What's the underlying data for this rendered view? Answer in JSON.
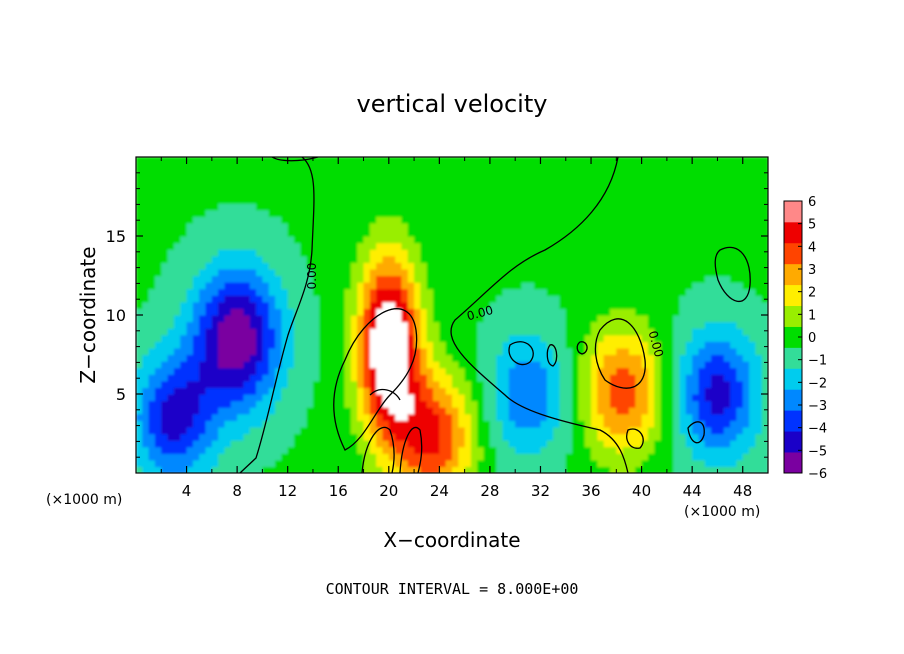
{
  "chart_data": {
    "type": "heatmap",
    "title": "vertical velocity",
    "xlabel": "X−coordinate",
    "ylabel": "Z−coordinate",
    "x_units_left": "(×1000 m)",
    "x_units_right": "(×1000 m)",
    "footer": "CONTOUR INTERVAL = 8.000E+00",
    "xlim": [
      0,
      50
    ],
    "ylim": [
      0,
      20
    ],
    "x_ticks": [
      4,
      8,
      12,
      16,
      20,
      24,
      28,
      32,
      36,
      40,
      44,
      48
    ],
    "x_tick_labels": [
      "4",
      "8",
      "12",
      "16",
      "20",
      "24",
      "28",
      "32",
      "36",
      "40",
      "44",
      "48"
    ],
    "y_ticks": [
      5,
      10,
      15
    ],
    "y_tick_labels": [
      "5",
      "10",
      "15"
    ],
    "colorbar": {
      "min": -6,
      "max": 6,
      "levels": [
        -6,
        -5,
        -4,
        -3,
        -2,
        -1,
        0,
        1,
        2,
        3,
        4,
        5,
        6
      ],
      "labels": [
        "−6",
        "−5",
        "−4",
        "−3",
        "−2",
        "−1",
        "0",
        "1",
        "2",
        "3",
        "4",
        "5",
        "6"
      ],
      "colors": [
        "#7a00a0",
        "#1a00c8",
        "#0033ff",
        "#0088ff",
        "#00ccee",
        "#33dd99",
        "#00dd00",
        "#99ee00",
        "#ffee00",
        "#ffaa00",
        "#ff4400",
        "#ee0000",
        "#ff8888"
      ]
    },
    "contour_labels": [
      "0.00",
      "0.00",
      "0.00"
    ],
    "features": [
      {
        "kind": "updraft",
        "x": 20,
        "z": 8,
        "amp": 8
      },
      {
        "kind": "updraft",
        "x": 23.5,
        "z": 2.3,
        "amp": 5
      },
      {
        "kind": "updraft",
        "x": 38.5,
        "z": 5.2,
        "amp": 4.5
      },
      {
        "kind": "downdraft",
        "x": 8,
        "z": 8.5,
        "amp": -6
      },
      {
        "kind": "downdraft",
        "x": 3,
        "z": 3.5,
        "amp": -4.5
      },
      {
        "kind": "downdraft",
        "x": 46,
        "z": 5,
        "amp": -4.5
      },
      {
        "kind": "downdraft",
        "x": 31,
        "z": 5,
        "amp": -3
      }
    ]
  }
}
